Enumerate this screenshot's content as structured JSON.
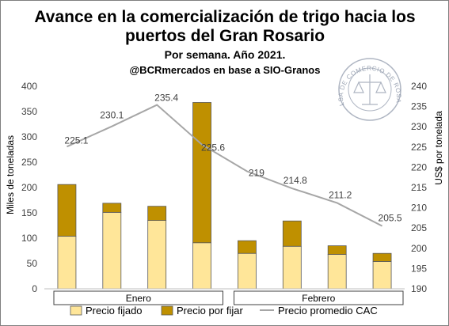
{
  "chart_data": {
    "type": "bar",
    "stacked": true,
    "title_lines": [
      "Avance en la comercialización de trigo hacia los",
      "puertos del Gran Rosario"
    ],
    "subtitle": "Por semana. Año 2021.",
    "source": "@BCRmercados en base a SIO-Granos",
    "ylabel_left": "Miles de toneladas",
    "ylabel_right": "US$ por tonelada",
    "ylim_left": [
      0,
      400
    ],
    "yticks_left": [
      0,
      50,
      100,
      150,
      200,
      250,
      300,
      350,
      400
    ],
    "ylim_right": [
      190,
      240
    ],
    "yticks_right": [
      190,
      195,
      200,
      205,
      210,
      215,
      220,
      225,
      230,
      235,
      240
    ],
    "groups": [
      {
        "label": "Enero",
        "count": 4
      },
      {
        "label": "Febrero",
        "count": 4
      }
    ],
    "series": [
      {
        "name": "Precio fijado",
        "kind": "bar",
        "color": "#FFE699",
        "values": [
          104,
          151,
          135,
          91,
          70,
          84,
          68,
          54
        ]
      },
      {
        "name": "Precio por fijar",
        "kind": "bar",
        "color": "#BF9000",
        "values": [
          102,
          18,
          28,
          277,
          25,
          50,
          17,
          16
        ]
      },
      {
        "name": "Precio promedio CAC",
        "kind": "line",
        "axis": "right",
        "color": "#A6A6A6",
        "values": [
          225.1,
          230.1,
          235.4,
          225.6,
          219,
          214.8,
          211.2,
          205.5
        ],
        "labels": [
          "225.1",
          "230.1",
          "235.4",
          "225.6",
          "219",
          "214.8",
          "211.2",
          "205.5"
        ]
      }
    ],
    "legend_position": "bottom",
    "grid": false
  },
  "logo": {
    "text": "BOLSA DE COMERCIO DE ROSARIO"
  }
}
